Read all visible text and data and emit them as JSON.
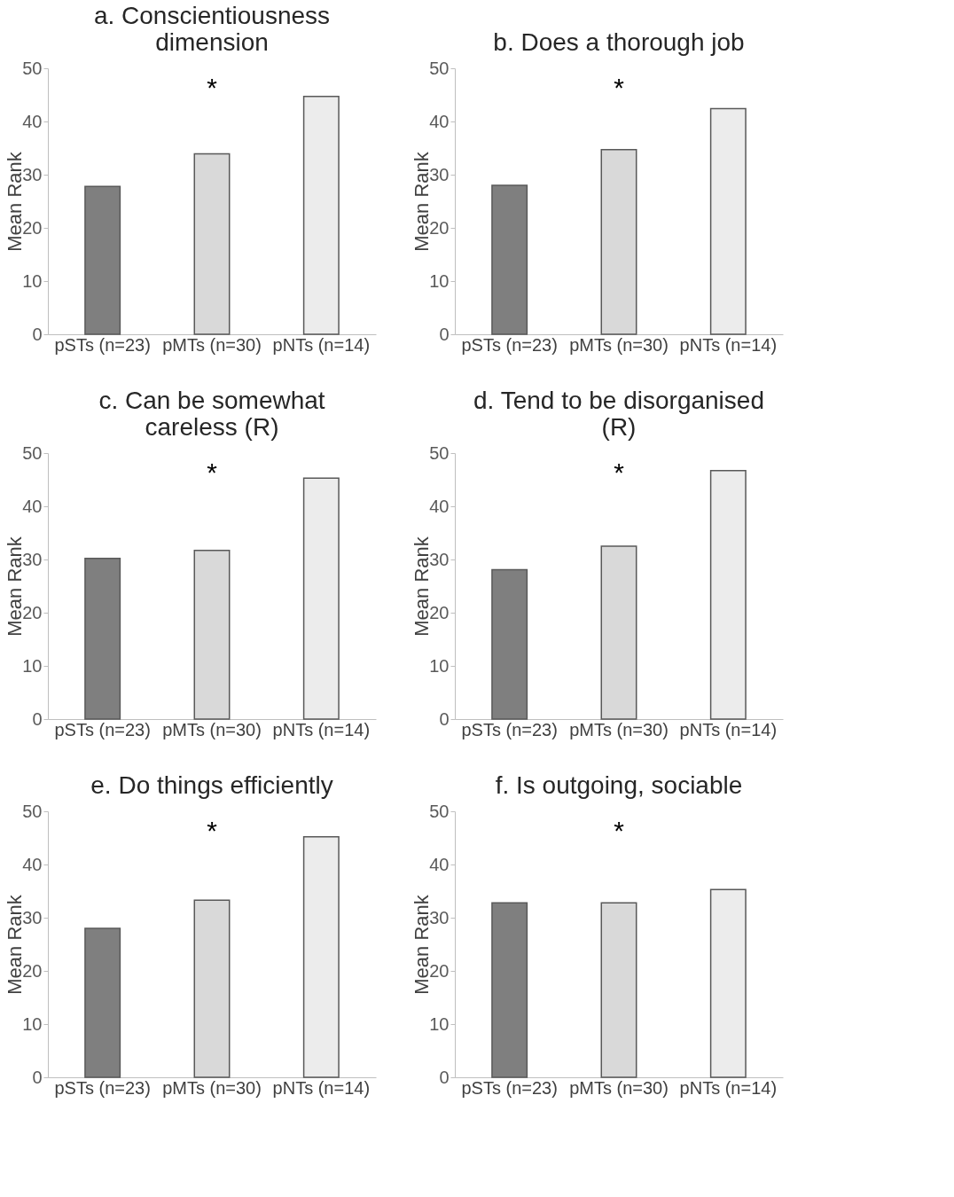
{
  "chart_data": [
    {
      "type": "bar",
      "title": "a. Conscientiousness dimension",
      "ylabel": "Mean Rank",
      "categories": [
        "pSTs (n=23)",
        "pMTs (n=30)",
        "pNTs (n=14)"
      ],
      "values": [
        27.8,
        33.9,
        44.7
      ],
      "colors": [
        "#7f7f7f",
        "#d9d9d9",
        "#ececec"
      ],
      "ylim": [
        0,
        50
      ],
      "yticks": [
        0,
        10,
        20,
        30,
        40,
        50
      ],
      "grid": false,
      "annotations": [
        "*"
      ]
    },
    {
      "type": "bar",
      "title": "b. Does a thorough job",
      "ylabel": "Mean Rank",
      "categories": [
        "pSTs (n=23)",
        "pMTs (n=30)",
        "pNTs (n=14)"
      ],
      "values": [
        28.0,
        34.7,
        42.4
      ],
      "colors": [
        "#7f7f7f",
        "#d9d9d9",
        "#ececec"
      ],
      "ylim": [
        0,
        50
      ],
      "yticks": [
        0,
        10,
        20,
        30,
        40,
        50
      ],
      "grid": false,
      "annotations": [
        "*"
      ]
    },
    {
      "type": "bar",
      "title": "c. Can be somewhat careless (R)",
      "ylabel": "Mean Rank",
      "categories": [
        "pSTs (n=23)",
        "pMTs (n=30)",
        "pNTs (n=14)"
      ],
      "values": [
        30.2,
        31.7,
        45.3
      ],
      "colors": [
        "#7f7f7f",
        "#d9d9d9",
        "#ececec"
      ],
      "ylim": [
        0,
        50
      ],
      "yticks": [
        0,
        10,
        20,
        30,
        40,
        50
      ],
      "grid": false,
      "annotations": [
        "*"
      ]
    },
    {
      "type": "bar",
      "title": "d. Tend to be disorganised (R)",
      "ylabel": "Mean Rank",
      "categories": [
        "pSTs (n=23)",
        "pMTs (n=30)",
        "pNTs (n=14)"
      ],
      "values": [
        28.1,
        32.5,
        46.7
      ],
      "colors": [
        "#7f7f7f",
        "#d9d9d9",
        "#ececec"
      ],
      "ylim": [
        0,
        50
      ],
      "yticks": [
        0,
        10,
        20,
        30,
        40,
        50
      ],
      "grid": false,
      "annotations": [
        "*"
      ]
    },
    {
      "type": "bar",
      "title": "e. Do things efficiently",
      "ylabel": "Mean Rank",
      "categories": [
        "pSTs (n=23)",
        "pMTs (n=30)",
        "pNTs (n=14)"
      ],
      "values": [
        28.0,
        33.3,
        45.2
      ],
      "colors": [
        "#7f7f7f",
        "#d9d9d9",
        "#ececec"
      ],
      "ylim": [
        0,
        50
      ],
      "yticks": [
        0,
        10,
        20,
        30,
        40,
        50
      ],
      "grid": false,
      "annotations": [
        "*"
      ]
    },
    {
      "type": "bar",
      "title": "f. Is outgoing, sociable",
      "ylabel": "Mean Rank",
      "categories": [
        "pSTs (n=23)",
        "pMTs (n=30)",
        "pNTs (n=14)"
      ],
      "values": [
        32.8,
        32.8,
        35.3
      ],
      "colors": [
        "#7f7f7f",
        "#d9d9d9",
        "#ececec"
      ],
      "ylim": [
        0,
        50
      ],
      "yticks": [
        0,
        10,
        20,
        30,
        40,
        50
      ],
      "grid": false,
      "annotations": [
        "*"
      ]
    }
  ]
}
